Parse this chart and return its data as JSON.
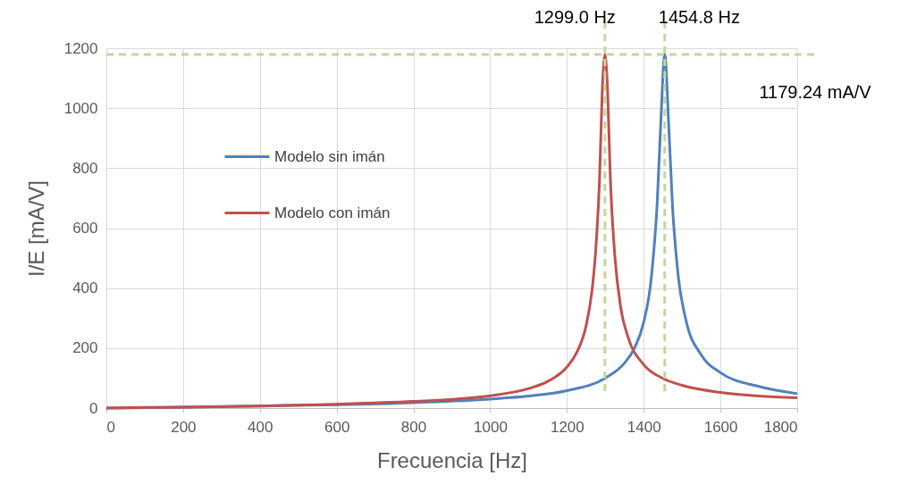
{
  "chart_data": {
    "type": "line",
    "xlabel": "Frecuencia [Hz]",
    "ylabel": "I/E [mA/V]",
    "xlim": [
      0,
      1800
    ],
    "xticks": [
      0,
      200,
      400,
      600,
      800,
      1000,
      1200,
      1400,
      1600,
      1800
    ],
    "ylim": [
      0,
      1200
    ],
    "yticks": [
      0,
      200,
      400,
      600,
      800,
      1000,
      1200
    ],
    "grid": true,
    "legend": "left",
    "marker": "none",
    "line_style": "solid",
    "series": [
      {
        "name": "Modelo sin imán",
        "color": "#4f81bd",
        "x": [
          0,
          200,
          400,
          600,
          800,
          1000,
          1100,
          1200,
          1300,
          1350,
          1376,
          1400,
          1420,
          1435,
          1445,
          1454.8,
          1465,
          1475,
          1490,
          1510,
          1550,
          1600,
          1700,
          1800
        ],
        "values": [
          0,
          3,
          7,
          11,
          18,
          30,
          40,
          58,
          100,
          150,
          200,
          286,
          436,
          680,
          965,
          1179.24,
          950,
          675,
          440,
          294,
          177,
          118,
          72,
          48
        ]
      },
      {
        "name": "Modelo con imán",
        "color": "#c0504d",
        "x": [
          0,
          100,
          200,
          400,
          600,
          800,
          900,
          1000,
          1100,
          1150,
          1200,
          1225,
          1250,
          1265,
          1275,
          1285,
          1292,
          1299,
          1306,
          1313,
          1325,
          1340,
          1360,
          1400,
          1450,
          1500,
          1600,
          1700,
          1800
        ],
        "values": [
          0,
          2,
          3,
          7,
          13,
          22,
          29,
          41,
          65,
          89,
          137,
          184,
          275,
          389,
          526,
          765,
          1056,
          1179.24,
          1056,
          770,
          505,
          336,
          234,
          145,
          99,
          76,
          52,
          40,
          34
        ]
      }
    ],
    "ref_lines": [
      {
        "axis": "x",
        "value": 1299.0,
        "label": "1299.0 Hz",
        "color": "#c3d69b",
        "line_style": "dashed"
      },
      {
        "axis": "x",
        "value": 1454.8,
        "label": "1454.8 Hz",
        "color": "#c3d69b",
        "line_style": "dashed"
      },
      {
        "axis": "y",
        "value": 1179.24,
        "label": "1179.24 mA/V",
        "color": "#c3d69b",
        "line_style": "dashed"
      }
    ]
  }
}
